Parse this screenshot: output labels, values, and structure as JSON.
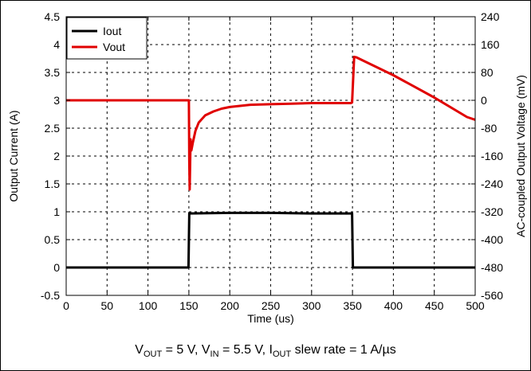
{
  "chart_data": {
    "type": "line",
    "xlabel": "Time (us)",
    "ylabel_left": "Output Current (A)",
    "ylabel_right": "AC-coupled Output Voltage (mV)",
    "xlim": [
      0,
      500
    ],
    "ylim_left": [
      -0.5,
      4.5
    ],
    "ylim_right": [
      -560,
      240
    ],
    "x_ticks": [
      0,
      50,
      100,
      150,
      200,
      250,
      300,
      350,
      400,
      450,
      500
    ],
    "y_left_ticks": [
      -0.5,
      0,
      0.5,
      1,
      1.5,
      2,
      2.5,
      3,
      3.5,
      4,
      4.5
    ],
    "y_right_ticks": [
      -560,
      -480,
      -400,
      -320,
      -240,
      -160,
      -80,
      0,
      80,
      160,
      240
    ],
    "grid": true,
    "legend": "top-left",
    "series": [
      {
        "name": "Iout",
        "color": "#000000",
        "axis": "left",
        "x": [
          0,
          149.5,
          150.5,
          200,
          250,
          300,
          349.5,
          350.5,
          500
        ],
        "y": [
          0.0,
          0.0,
          0.97,
          0.98,
          0.98,
          0.97,
          0.97,
          0.0,
          0.0
        ]
      },
      {
        "name": "Vout",
        "color": "#e00000",
        "axis": "left",
        "x": [
          0,
          50,
          100,
          148,
          150,
          150.5,
          151,
          152,
          153,
          155,
          158,
          162,
          170,
          180,
          190,
          200,
          225,
          250,
          275,
          300,
          325,
          348,
          349.5,
          352,
          355,
          400,
          450,
          490,
          500
        ],
        "y": [
          3.0,
          3.0,
          3.0,
          3.0,
          3.0,
          1.9,
          1.4,
          2.3,
          2.1,
          2.25,
          2.45,
          2.6,
          2.73,
          2.8,
          2.85,
          2.88,
          2.92,
          2.93,
          2.94,
          2.95,
          2.95,
          2.95,
          2.96,
          3.78,
          3.77,
          3.45,
          3.05,
          2.7,
          2.65
        ]
      }
    ]
  },
  "caption": {
    "v_label": "V",
    "v_sub_out": "OUT",
    "v_out_value": " = 5 V, V",
    "v_sub_in": "IN",
    "v_in_value": " = 5.5 V, I",
    "i_sub_out": "OUT",
    "slew_text": " slew rate = 1 A/µs"
  }
}
